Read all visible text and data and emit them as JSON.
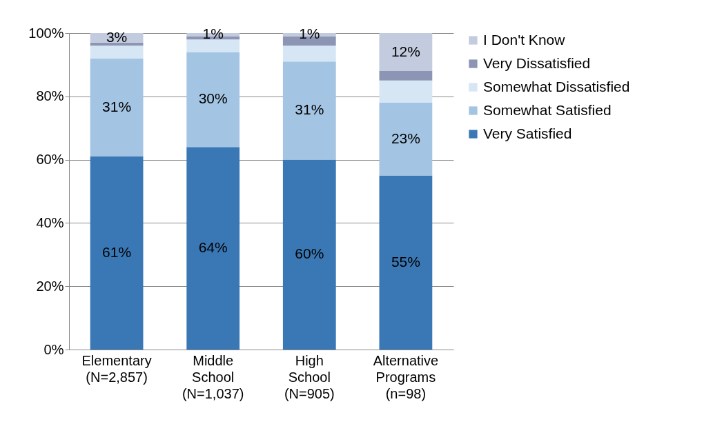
{
  "chart_data": {
    "type": "bar",
    "stacked": true,
    "categories": [
      "Elementary (N=2,857)",
      "Middle School (N=1,037)",
      "High School (N=905)",
      "Alternative Programs (n=98)"
    ],
    "series": [
      {
        "name": "Very Satisfied",
        "color": "#3a78b5",
        "values": [
          61,
          64,
          60,
          55
        ],
        "value_labels": [
          "61%",
          "64%",
          "60%",
          "55%"
        ]
      },
      {
        "name": "Somewhat Satisfied",
        "color": "#a3c4e2",
        "values": [
          31,
          30,
          31,
          23
        ],
        "value_labels": [
          "31%",
          "30%",
          "31%",
          "23%"
        ]
      },
      {
        "name": "Somewhat Dissatisfied",
        "color": "#d6e6f5",
        "values": [
          4,
          4,
          5,
          7
        ]
      },
      {
        "name": "Very Dissatisfied",
        "color": "#8c96b4",
        "values": [
          1,
          1,
          3,
          3
        ]
      },
      {
        "name": "I Don't Know",
        "color": "#c3cbde",
        "values": [
          3,
          1,
          1,
          12
        ],
        "value_labels": [
          "3%",
          "1%",
          "1%",
          "12%"
        ]
      }
    ],
    "ylim": [
      0,
      100
    ],
    "yticks": [
      {
        "value": 0,
        "label": "0%"
      },
      {
        "value": 20,
        "label": "20%"
      },
      {
        "value": 40,
        "label": "40%"
      },
      {
        "value": 60,
        "label": "60%"
      },
      {
        "value": 80,
        "label": "80%"
      },
      {
        "value": 100,
        "label": "100%"
      }
    ],
    "grid": "y",
    "legend": "right"
  }
}
